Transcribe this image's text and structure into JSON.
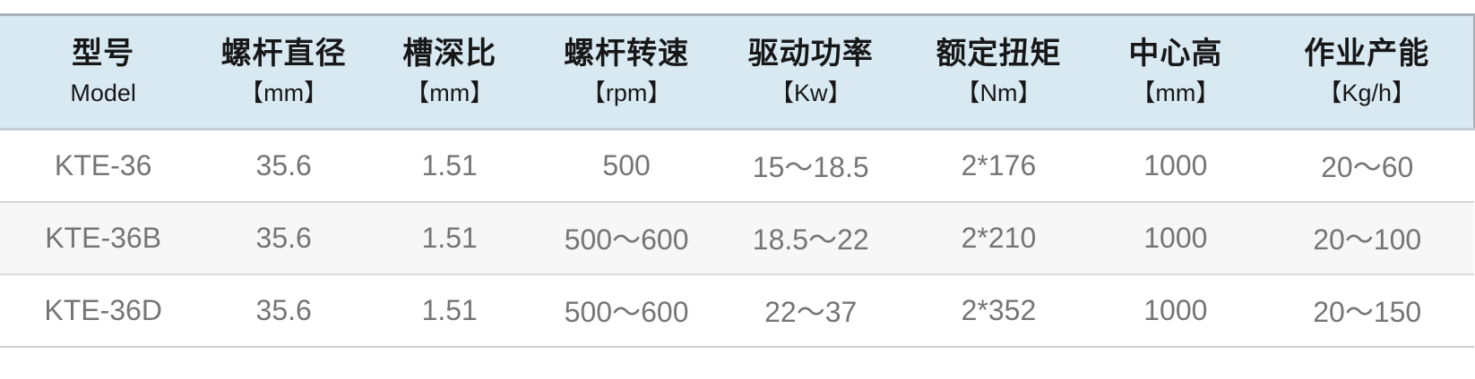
{
  "colors": {
    "header_bg": "#d8e9f2",
    "header_text": "#171717",
    "body_text": "#757575",
    "row_alt_bg": "#f7f7f7",
    "table_top_border": "#a7b3b9",
    "header_divider": "#c4cdd2",
    "row_divider": "#d8d8d8",
    "table_bottom_border": "#d0d0d0"
  },
  "table": {
    "columns": [
      {
        "title": "型号",
        "unit": "Model"
      },
      {
        "title": "螺杆直径",
        "unit": "【mm】"
      },
      {
        "title": "槽深比",
        "unit": "【mm】"
      },
      {
        "title": "螺杆转速",
        "unit": "【rpm】"
      },
      {
        "title": "驱动功率",
        "unit": "【Kw】"
      },
      {
        "title": "额定扭矩",
        "unit": "【Nm】"
      },
      {
        "title": "中心高",
        "unit": "【mm】"
      },
      {
        "title": "作业产能",
        "unit": "【Kg/h】"
      }
    ],
    "rows": [
      [
        "KTE-36",
        "35.6",
        "1.51",
        "500",
        "15～18.5",
        "2*176",
        "1000",
        "20～60"
      ],
      [
        "KTE-36B",
        "35.6",
        "1.51",
        "500～600",
        "18.5～22",
        "2*210",
        "1000",
        "20～100"
      ],
      [
        "KTE-36D",
        "35.6",
        "1.51",
        "500～600",
        "22～37",
        "2*352",
        "1000",
        "20～150"
      ]
    ]
  },
  "chart_data": {
    "type": "table",
    "title": "",
    "columns": [
      "型号 Model",
      "螺杆直径【mm】",
      "槽深比【mm】",
      "螺杆转速【rpm】",
      "驱动功率【Kw】",
      "额定扭矩【Nm】",
      "中心高【mm】",
      "作业产能【Kg/h】"
    ],
    "rows": [
      [
        "KTE-36",
        "35.6",
        "1.51",
        "500",
        "15～18.5",
        "2*176",
        "1000",
        "20～60"
      ],
      [
        "KTE-36B",
        "35.6",
        "1.51",
        "500～600",
        "18.5～22",
        "2*210",
        "1000",
        "20～100"
      ],
      [
        "KTE-36D",
        "35.6",
        "1.51",
        "500～600",
        "22～37",
        "2*352",
        "1000",
        "20～150"
      ]
    ]
  }
}
